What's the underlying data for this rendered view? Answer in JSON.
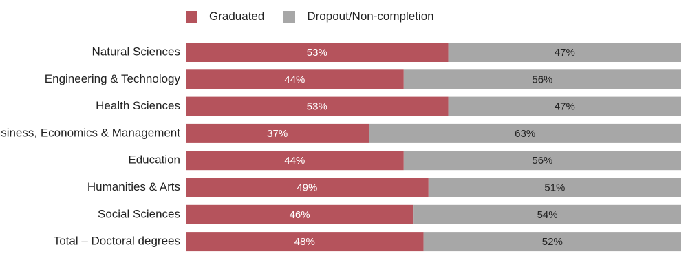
{
  "chart_data": {
    "type": "bar",
    "orientation": "horizontal",
    "stacked": true,
    "categories": [
      "Natural Sciences",
      "Engineering & Technology",
      "Health Sciences",
      "Business, Economics & Management",
      "Education",
      "Humanities & Arts",
      "Social Sciences",
      "Total – Doctoral degrees"
    ],
    "series": [
      {
        "name": "Graduated",
        "color": "#b5535c",
        "values": [
          53,
          44,
          53,
          37,
          44,
          49,
          46,
          48
        ],
        "labels": [
          "53%",
          "44%",
          "53%",
          "37%",
          "44%",
          "49%",
          "46%",
          "48%"
        ]
      },
      {
        "name": "Dropout/Non-completion",
        "color": "#a7a7a7",
        "values": [
          47,
          56,
          47,
          63,
          56,
          51,
          54,
          52
        ],
        "labels": [
          "47%",
          "56%",
          "47%",
          "63%",
          "56%",
          "51%",
          "54%",
          "52%"
        ]
      }
    ],
    "xlim": [
      0,
      100
    ],
    "grid": false,
    "legend_position": "top",
    "title": "",
    "xlabel": "",
    "ylabel": ""
  }
}
